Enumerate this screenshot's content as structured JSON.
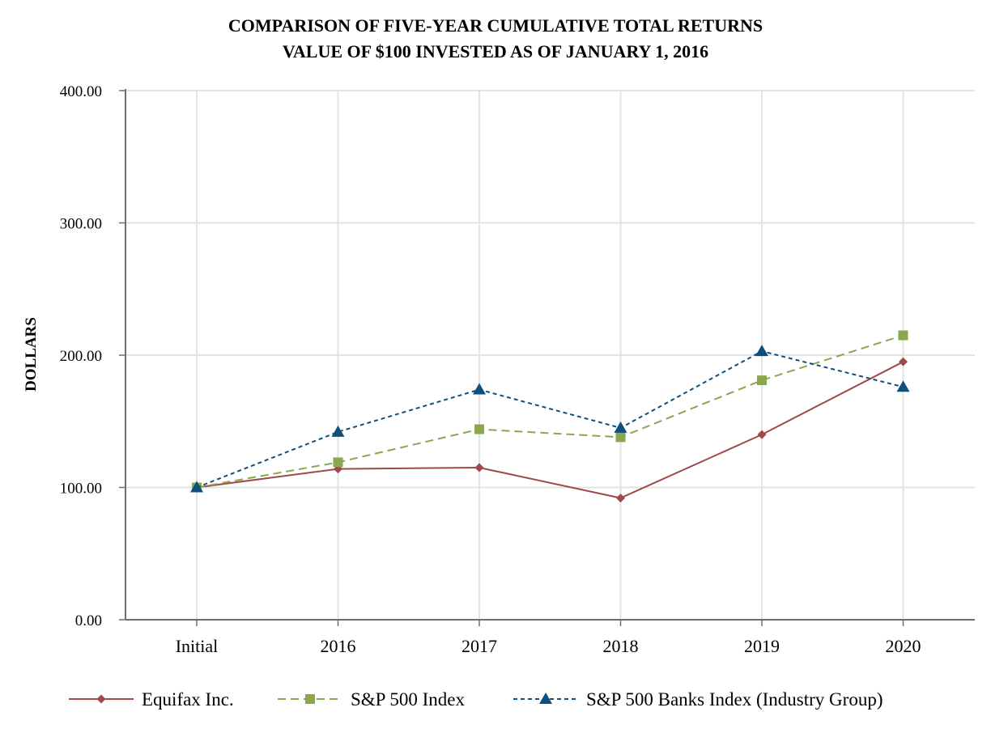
{
  "chart_data": {
    "type": "line",
    "title_line1": "COMPARISON OF FIVE-YEAR CUMULATIVE TOTAL RETURNS",
    "title_line2": "VALUE OF $100 INVESTED AS OF JANUARY 1, 2016",
    "ylabel": "DOLLARS",
    "xlabel": "",
    "categories": [
      "Initial",
      "2016",
      "2017",
      "2018",
      "2019",
      "2020"
    ],
    "ylim": [
      0,
      400
    ],
    "yticks": [
      "0.00",
      "100.00",
      "200.00",
      "300.00",
      "400.00"
    ],
    "grid": true,
    "legend_position": "bottom",
    "series": [
      {
        "name": "Equifax Inc.",
        "color": "#a0484a",
        "marker": "diamond",
        "dash": "solid",
        "values": [
          100,
          114,
          115,
          92,
          140,
          195
        ]
      },
      {
        "name": "S&P 500 Index",
        "color": "#8aa64f",
        "marker": "square",
        "dash": "long-dash",
        "values": [
          100,
          119,
          144,
          138,
          181,
          215
        ]
      },
      {
        "name": "S&P 500 Banks Index (Industry Group)",
        "color": "#0f4f7c",
        "marker": "triangle",
        "dash": "short-dash",
        "values": [
          100,
          142,
          174,
          145,
          203,
          176
        ]
      }
    ]
  }
}
